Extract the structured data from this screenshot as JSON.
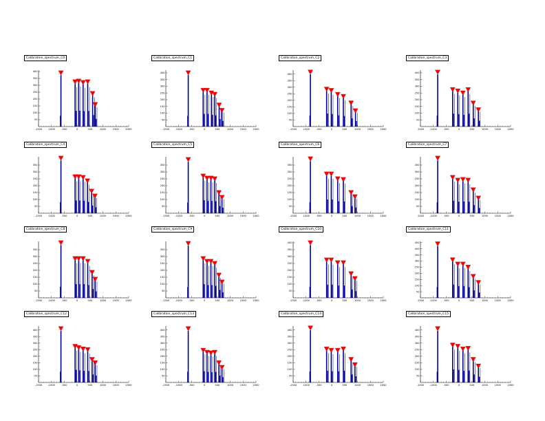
{
  "colors": {
    "histogram": "#000099",
    "marker": "#ff0000",
    "axis": "#000000"
  },
  "chart_data": [
    {
      "type": "bar",
      "title": "Calibration_spectrum_C0",
      "xlim": [
        -1500,
        2000
      ],
      "ylim": [
        0,
        410
      ],
      "xticks": [
        "-1500",
        "-1000",
        "-500",
        "0",
        "500",
        "1000",
        "1500",
        "2000"
      ],
      "yticks": [
        "50",
        "100",
        "150",
        "200",
        "250",
        "300",
        "350",
        "400"
      ],
      "peaks": [
        {
          "x": -630,
          "y": 390
        },
        {
          "x": -80,
          "y": 325
        },
        {
          "x": 60,
          "y": 330
        },
        {
          "x": 230,
          "y": 320
        },
        {
          "x": 410,
          "y": 325
        },
        {
          "x": 600,
          "y": 240
        },
        {
          "x": 700,
          "y": 160
        }
      ]
    },
    {
      "type": "bar",
      "title": "Calibration_spectrum_C1",
      "xlim": [
        -1500,
        2000
      ],
      "ylim": [
        0,
        420
      ],
      "xticks": [
        "-1500",
        "-1000",
        "-500",
        "0",
        "500",
        "1000",
        "1500",
        "2000"
      ],
      "yticks": [
        "50",
        "100",
        "150",
        "200",
        "250",
        "300",
        "350",
        "400"
      ],
      "peaks": [
        {
          "x": -630,
          "y": 400
        },
        {
          "x": -50,
          "y": 270
        },
        {
          "x": 100,
          "y": 270
        },
        {
          "x": 270,
          "y": 250
        },
        {
          "x": 400,
          "y": 240
        },
        {
          "x": 570,
          "y": 160
        },
        {
          "x": 680,
          "y": 120
        }
      ]
    },
    {
      "type": "bar",
      "title": "Calibration_spectrum_C2",
      "xlim": [
        -1500,
        2000
      ],
      "ylim": [
        0,
        430
      ],
      "xticks": [
        "-1500",
        "-1000",
        "-500",
        "0",
        "500",
        "1000",
        "1500",
        "2000"
      ],
      "yticks": [
        "50",
        "100",
        "150",
        "200",
        "250",
        "300",
        "350",
        "400"
      ],
      "peaks": [
        {
          "x": -830,
          "y": 415
        },
        {
          "x": -200,
          "y": 285
        },
        {
          "x": -20,
          "y": 275
        },
        {
          "x": 230,
          "y": 245
        },
        {
          "x": 450,
          "y": 230
        },
        {
          "x": 750,
          "y": 180
        },
        {
          "x": 920,
          "y": 120
        }
      ]
    },
    {
      "type": "bar",
      "title": "Calibration_spectrum_C3",
      "xlim": [
        -1500,
        2000
      ],
      "ylim": [
        0,
        420
      ],
      "xticks": [
        "-1500",
        "-1000",
        "-500",
        "0",
        "500",
        "1000",
        "1500",
        "2000"
      ],
      "yticks": [
        "50",
        "100",
        "150",
        "200",
        "250",
        "300",
        "350",
        "400"
      ],
      "peaks": [
        {
          "x": -830,
          "y": 405
        },
        {
          "x": -250,
          "y": 275
        },
        {
          "x": -50,
          "y": 265
        },
        {
          "x": 150,
          "y": 250
        },
        {
          "x": 350,
          "y": 275
        },
        {
          "x": 550,
          "y": 175
        },
        {
          "x": 750,
          "y": 125
        }
      ]
    },
    {
      "type": "bar",
      "title": "Calibration_spectrum_C4",
      "xlim": [
        -1500,
        2000
      ],
      "ylim": [
        0,
        410
      ],
      "xticks": [
        "-1500",
        "-1000",
        "-500",
        "0",
        "500",
        "1000",
        "1500",
        "2000"
      ],
      "yticks": [
        "50",
        "100",
        "150",
        "200",
        "250",
        "300",
        "350"
      ],
      "peaks": [
        {
          "x": -630,
          "y": 400
        },
        {
          "x": -80,
          "y": 265
        },
        {
          "x": 60,
          "y": 265
        },
        {
          "x": 230,
          "y": 260
        },
        {
          "x": 400,
          "y": 235
        },
        {
          "x": 560,
          "y": 160
        },
        {
          "x": 690,
          "y": 125
        }
      ]
    },
    {
      "type": "bar",
      "title": "Calibration_spectrum_C5",
      "xlim": [
        -1500,
        2000
      ],
      "ylim": [
        0,
        410
      ],
      "xticks": [
        "-1500",
        "-1000",
        "-500",
        "0",
        "500",
        "1000",
        "1500",
        "2000"
      ],
      "yticks": [
        "50",
        "100",
        "150",
        "200",
        "250",
        "300",
        "350"
      ],
      "peaks": [
        {
          "x": -630,
          "y": 390
        },
        {
          "x": -50,
          "y": 270
        },
        {
          "x": 100,
          "y": 255
        },
        {
          "x": 250,
          "y": 255
        },
        {
          "x": 400,
          "y": 250
        },
        {
          "x": 560,
          "y": 150
        },
        {
          "x": 680,
          "y": 115
        }
      ]
    },
    {
      "type": "bar",
      "title": "Calibration_spectrum_C6",
      "xlim": [
        -1500,
        2000
      ],
      "ylim": [
        0,
        410
      ],
      "xticks": [
        "-1500",
        "-1000",
        "-500",
        "0",
        "500",
        "1000",
        "1500",
        "2000"
      ],
      "yticks": [
        "50",
        "100",
        "150",
        "200",
        "250",
        "300",
        "350"
      ],
      "peaks": [
        {
          "x": -830,
          "y": 395
        },
        {
          "x": -200,
          "y": 285
        },
        {
          "x": -20,
          "y": 285
        },
        {
          "x": 230,
          "y": 250
        },
        {
          "x": 450,
          "y": 245
        },
        {
          "x": 750,
          "y": 150
        },
        {
          "x": 900,
          "y": 120
        }
      ]
    },
    {
      "type": "bar",
      "title": "Calibration_spectrum_C7",
      "xlim": [
        -1500,
        2000
      ],
      "ylim": [
        0,
        410
      ],
      "xticks": [
        "-1500",
        "-1000",
        "-500",
        "0",
        "500",
        "1000",
        "1500",
        "2000"
      ],
      "yticks": [
        "50",
        "100",
        "150",
        "200",
        "250",
        "300",
        "350"
      ],
      "peaks": [
        {
          "x": -830,
          "y": 400
        },
        {
          "x": -250,
          "y": 260
        },
        {
          "x": -50,
          "y": 240
        },
        {
          "x": 150,
          "y": 245
        },
        {
          "x": 350,
          "y": 240
        },
        {
          "x": 550,
          "y": 170
        },
        {
          "x": 750,
          "y": 110
        }
      ]
    },
    {
      "type": "bar",
      "title": "Calibration_spectrum_C8",
      "xlim": [
        -1500,
        2000
      ],
      "ylim": [
        0,
        410
      ],
      "xticks": [
        "-1500",
        "-1000",
        "-500",
        "0",
        "500",
        "1000",
        "1500",
        "2000"
      ],
      "yticks": [
        "50",
        "100",
        "150",
        "200",
        "250",
        "300",
        "350"
      ],
      "peaks": [
        {
          "x": -630,
          "y": 400
        },
        {
          "x": -80,
          "y": 285
        },
        {
          "x": 60,
          "y": 285
        },
        {
          "x": 230,
          "y": 285
        },
        {
          "x": 410,
          "y": 265
        },
        {
          "x": 580,
          "y": 185
        },
        {
          "x": 700,
          "y": 135
        }
      ]
    },
    {
      "type": "bar",
      "title": "Calibration_spectrum_C9",
      "xlim": [
        -1500,
        2000
      ],
      "ylim": [
        0,
        410
      ],
      "xticks": [
        "-1500",
        "-1000",
        "-500",
        "0",
        "500",
        "1000",
        "1500",
        "2000"
      ],
      "yticks": [
        "50",
        "100",
        "150",
        "200",
        "250",
        "300",
        "350"
      ],
      "peaks": [
        {
          "x": -630,
          "y": 395
        },
        {
          "x": -50,
          "y": 285
        },
        {
          "x": 100,
          "y": 265
        },
        {
          "x": 250,
          "y": 265
        },
        {
          "x": 400,
          "y": 250
        },
        {
          "x": 560,
          "y": 165
        },
        {
          "x": 680,
          "y": 115
        }
      ]
    },
    {
      "type": "bar",
      "title": "Calibration_spectrum_C10",
      "xlim": [
        -1500,
        2000
      ],
      "ylim": [
        0,
        410
      ],
      "xticks": [
        "-1500",
        "-1000",
        "-500",
        "0",
        "500",
        "1000",
        "1500",
        "2000"
      ],
      "yticks": [
        "50",
        "100",
        "150",
        "200",
        "250",
        "300",
        "350",
        "400"
      ],
      "peaks": [
        {
          "x": -830,
          "y": 400
        },
        {
          "x": -200,
          "y": 275
        },
        {
          "x": -20,
          "y": 275
        },
        {
          "x": 230,
          "y": 255
        },
        {
          "x": 450,
          "y": 255
        },
        {
          "x": 750,
          "y": 175
        },
        {
          "x": 900,
          "y": 140
        }
      ]
    },
    {
      "type": "bar",
      "title": "Calibration_spectrum_C11",
      "xlim": [
        -1500,
        2000
      ],
      "ylim": [
        0,
        460
      ],
      "xticks": [
        "-1500",
        "-1000",
        "-500",
        "0",
        "500",
        "1000",
        "1500",
        "2000"
      ],
      "yticks": [
        "50",
        "100",
        "150",
        "200",
        "250",
        "300",
        "350",
        "400",
        "450"
      ],
      "peaks": [
        {
          "x": -830,
          "y": 440
        },
        {
          "x": -250,
          "y": 310
        },
        {
          "x": -50,
          "y": 275
        },
        {
          "x": 150,
          "y": 275
        },
        {
          "x": 350,
          "y": 250
        },
        {
          "x": 550,
          "y": 175
        },
        {
          "x": 750,
          "y": 125
        }
      ]
    },
    {
      "type": "bar",
      "title": "Calibration_spectrum_C12",
      "xlim": [
        -1500,
        2000
      ],
      "ylim": [
        0,
        430
      ],
      "xticks": [
        "-1500",
        "-1000",
        "-500",
        "0",
        "500",
        "1000",
        "1500",
        "2000"
      ],
      "yticks": [
        "50",
        "100",
        "150",
        "200",
        "250",
        "300",
        "350",
        "400"
      ],
      "peaks": [
        {
          "x": -630,
          "y": 410
        },
        {
          "x": -80,
          "y": 275
        },
        {
          "x": 60,
          "y": 265
        },
        {
          "x": 230,
          "y": 255
        },
        {
          "x": 410,
          "y": 250
        },
        {
          "x": 580,
          "y": 175
        },
        {
          "x": 700,
          "y": 150
        }
      ]
    },
    {
      "type": "bar",
      "title": "Calibration_spectrum_C13",
      "xlim": [
        -1500,
        2000
      ],
      "ylim": [
        0,
        430
      ],
      "xticks": [
        "-1500",
        "-1000",
        "-500",
        "0",
        "500",
        "1000",
        "1500",
        "2000"
      ],
      "yticks": [
        "50",
        "100",
        "150",
        "200",
        "250",
        "300",
        "350",
        "400"
      ],
      "peaks": [
        {
          "x": -630,
          "y": 410
        },
        {
          "x": -50,
          "y": 245
        },
        {
          "x": 100,
          "y": 230
        },
        {
          "x": 250,
          "y": 225
        },
        {
          "x": 400,
          "y": 230
        },
        {
          "x": 560,
          "y": 150
        },
        {
          "x": 680,
          "y": 115
        }
      ]
    },
    {
      "type": "bar",
      "title": "Calibration_spectrum_C14",
      "xlim": [
        -1500,
        2000
      ],
      "ylim": [
        0,
        430
      ],
      "xticks": [
        "-1500",
        "-1000",
        "-500",
        "0",
        "500",
        "1000",
        "1500",
        "2000"
      ],
      "yticks": [
        "50",
        "100",
        "150",
        "200",
        "250",
        "300",
        "350",
        "400"
      ],
      "peaks": [
        {
          "x": -830,
          "y": 415
        },
        {
          "x": -200,
          "y": 255
        },
        {
          "x": -20,
          "y": 245
        },
        {
          "x": 230,
          "y": 245
        },
        {
          "x": 450,
          "y": 255
        },
        {
          "x": 750,
          "y": 175
        },
        {
          "x": 900,
          "y": 135
        }
      ]
    },
    {
      "type": "bar",
      "title": "Calibration_spectrum_C15",
      "xlim": [
        -1500,
        2000
      ],
      "ylim": [
        0,
        430
      ],
      "xticks": [
        "-1500",
        "-1000",
        "-500",
        "0",
        "500",
        "1000",
        "1500",
        "2000"
      ],
      "yticks": [
        "50",
        "100",
        "150",
        "200",
        "250",
        "300",
        "350",
        "400"
      ],
      "peaks": [
        {
          "x": -830,
          "y": 410
        },
        {
          "x": -250,
          "y": 285
        },
        {
          "x": -50,
          "y": 275
        },
        {
          "x": 150,
          "y": 255
        },
        {
          "x": 350,
          "y": 260
        },
        {
          "x": 550,
          "y": 175
        },
        {
          "x": 750,
          "y": 125
        }
      ]
    }
  ]
}
